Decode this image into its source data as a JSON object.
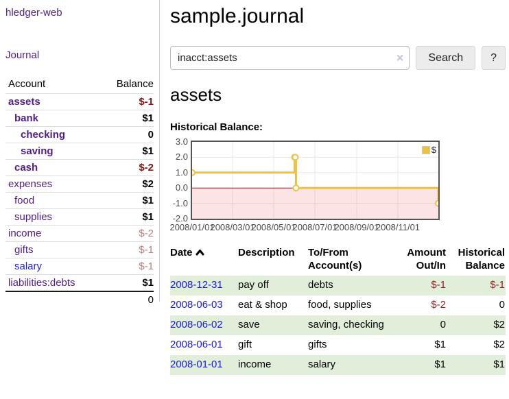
{
  "colors": {
    "link_purple": "#511d8b",
    "link_blue": "#2323d8",
    "negative_strong": "#8f1010",
    "negative_faded": "#b97e7e",
    "stripe_green": "#e0eeda",
    "series_gold": "#edc240",
    "zero_line_red": "#9e0b0b",
    "negative_region_pink": "rgba(240,90,90,0.16)"
  },
  "sidebar": {
    "app_title": "hledger-web",
    "nav": {
      "journal_label": "Journal"
    },
    "accounts_table": {
      "headers": {
        "account": "Account",
        "balance": "Balance"
      },
      "rows": [
        {
          "name": "assets",
          "level": 1,
          "bold": true,
          "balance": "$-1",
          "neg": "strong",
          "blue": false
        },
        {
          "name": "bank",
          "level": 2,
          "bold": true,
          "balance": "$1",
          "neg": "none",
          "blue": false
        },
        {
          "name": "checking",
          "level": 3,
          "bold": true,
          "balance": "0",
          "neg": "none",
          "blue": false
        },
        {
          "name": "saving",
          "level": 3,
          "bold": true,
          "balance": "$1",
          "neg": "none",
          "blue": false
        },
        {
          "name": "cash",
          "level": 2,
          "bold": true,
          "balance": "$-2",
          "neg": "strong",
          "blue": false
        },
        {
          "name": "expenses",
          "level": 1,
          "bold": false,
          "balance": "$2",
          "neg": "none",
          "blue": false
        },
        {
          "name": "food",
          "level": 2,
          "bold": false,
          "balance": "$1",
          "neg": "none",
          "blue": false
        },
        {
          "name": "supplies",
          "level": 2,
          "bold": false,
          "balance": "$1",
          "neg": "none",
          "blue": false
        },
        {
          "name": "income",
          "level": 1,
          "bold": false,
          "balance": "$-2",
          "neg": "faded",
          "blue": false
        },
        {
          "name": "gifts",
          "level": 2,
          "bold": false,
          "balance": "$-1",
          "neg": "faded",
          "blue": false
        },
        {
          "name": "salary",
          "level": 2,
          "bold": false,
          "balance": "$-1",
          "neg": "faded",
          "blue": true
        },
        {
          "name": "liabilities:debts",
          "level": 1,
          "bold": false,
          "balance": "$1",
          "neg": "none",
          "blue": false
        }
      ],
      "total": "0"
    }
  },
  "header": {
    "title": "sample.journal"
  },
  "search": {
    "value": "inacct:assets",
    "clear_icon": "×",
    "button_label": "Search",
    "help_label": "?"
  },
  "account_page": {
    "title": "assets",
    "chart_label": "Historical Balance:"
  },
  "chart_data": {
    "type": "line",
    "title": "Historical Balance of assets",
    "step": true,
    "legend": [
      {
        "label": "$",
        "color": "#edc240"
      }
    ],
    "legend_position": "top-right",
    "grid": true,
    "ylim": [
      -2,
      3
    ],
    "y_ticks": [
      3.0,
      2.0,
      1.0,
      0.0,
      -1.0,
      -2.0
    ],
    "y_tick_labels": [
      "3.0",
      "2.0",
      "1.0",
      "0.0",
      "-1.0",
      "-2.0"
    ],
    "x_tick_labels": [
      "2008/01/01",
      "2008/03/01",
      "2008/05/01",
      "2008/07/01",
      "2008/09/01",
      "2008/11/01"
    ],
    "x_tick_dates": [
      "2008-01-01",
      "2008-03-01",
      "2008-05-01",
      "2008-07-01",
      "2008-09-01",
      "2008-11-01"
    ],
    "x_range": [
      "2008-01-01",
      "2008-12-31"
    ],
    "series": [
      {
        "name": "$",
        "points": [
          {
            "date": "2008-01-01",
            "value": 1
          },
          {
            "date": "2008-06-01",
            "value": 2
          },
          {
            "date": "2008-06-02",
            "value": 2
          },
          {
            "date": "2008-06-03",
            "value": 0
          },
          {
            "date": "2008-12-31",
            "value": -1
          }
        ]
      }
    ],
    "annotations": {
      "negative_region_shaded": true,
      "zero_line": true
    }
  },
  "register_table": {
    "headers": {
      "date": "Date",
      "description": "Description",
      "tofrom": "To/From Account(s)",
      "amount": "Amount Out/In",
      "balance": "Historical Balance"
    },
    "rows": [
      {
        "date": "2008-12-31",
        "description": "pay off",
        "accounts": "debts",
        "amount": "$-1",
        "amount_neg": true,
        "balance": "$-1",
        "balance_neg": true
      },
      {
        "date": "2008-06-03",
        "description": "eat & shop",
        "accounts": "food, supplies",
        "amount": "$-2",
        "amount_neg": true,
        "balance": "0",
        "balance_neg": false
      },
      {
        "date": "2008-06-02",
        "description": "save",
        "accounts": "saving, checking",
        "amount": "0",
        "amount_neg": false,
        "balance": "$2",
        "balance_neg": false
      },
      {
        "date": "2008-06-01",
        "description": "gift",
        "accounts": "gifts",
        "amount": "$1",
        "amount_neg": false,
        "balance": "$2",
        "balance_neg": false
      },
      {
        "date": "2008-01-01",
        "description": "income",
        "accounts": "salary",
        "amount": "$1",
        "amount_neg": false,
        "balance": "$1",
        "balance_neg": false
      }
    ]
  }
}
